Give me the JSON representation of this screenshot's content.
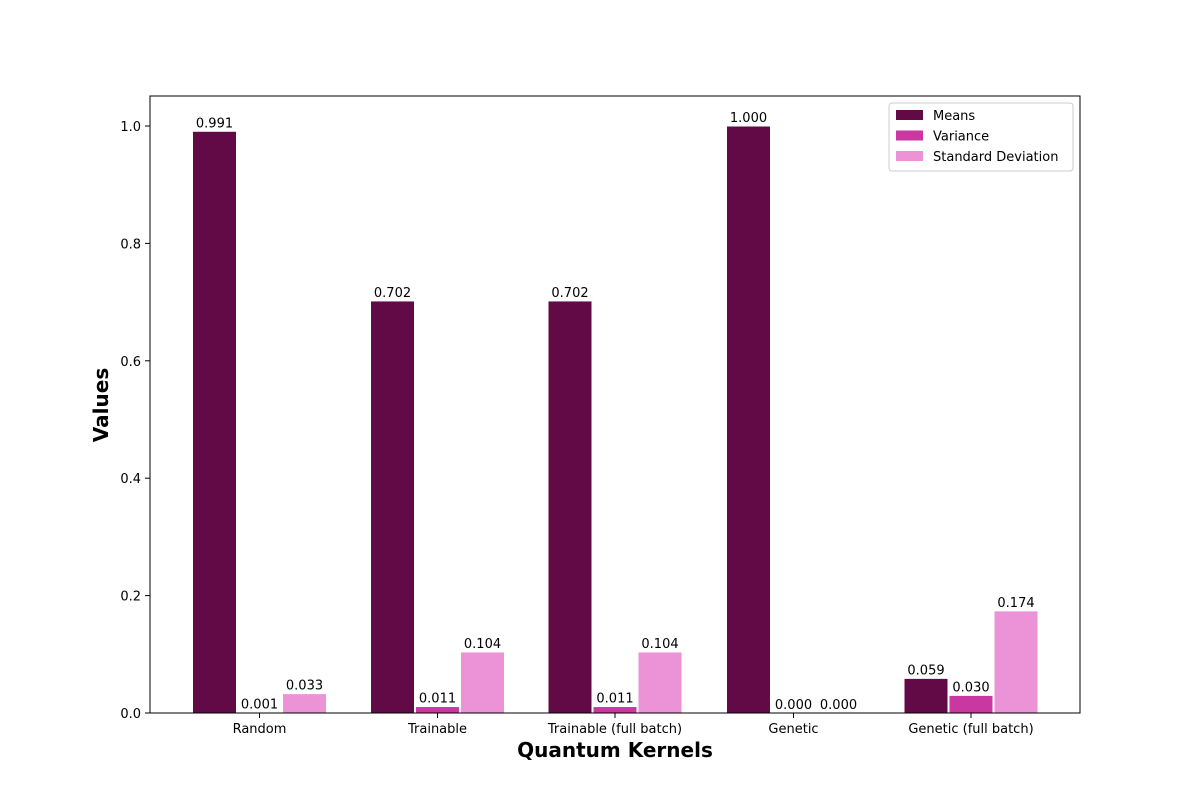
{
  "chart_data": {
    "type": "bar",
    "title": "",
    "xlabel": "Quantum Kernels",
    "ylabel": "Values",
    "ylim": [
      0,
      1.05
    ],
    "yticks": [
      0.0,
      0.2,
      0.4,
      0.6,
      0.8,
      1.0
    ],
    "ytick_labels": [
      "0.0",
      "0.2",
      "0.4",
      "0.6",
      "0.8",
      "1.0"
    ],
    "grid": false,
    "legend_position": "top-right",
    "categories": [
      "Random",
      "Trainable",
      "Trainable (full batch)",
      "Genetic",
      "Genetic (full batch)"
    ],
    "series": [
      {
        "name": "Means",
        "color": "#620a46",
        "values": [
          0.991,
          0.702,
          0.702,
          1.0,
          0.059
        ],
        "labels": [
          "0.991",
          "0.702",
          "0.702",
          "1.000",
          "0.059"
        ]
      },
      {
        "name": "Variance",
        "color": "#c838a0",
        "values": [
          0.001,
          0.011,
          0.011,
          0.0,
          0.03
        ],
        "labels": [
          "0.001",
          "0.011",
          "0.011",
          "0.000",
          "0.030"
        ]
      },
      {
        "name": "Standard Deviation",
        "color": "#ec92d6",
        "values": [
          0.033,
          0.104,
          0.104,
          0.0,
          0.174
        ],
        "labels": [
          "0.033",
          "0.104",
          "0.104",
          "0.000",
          "0.174"
        ]
      }
    ]
  }
}
